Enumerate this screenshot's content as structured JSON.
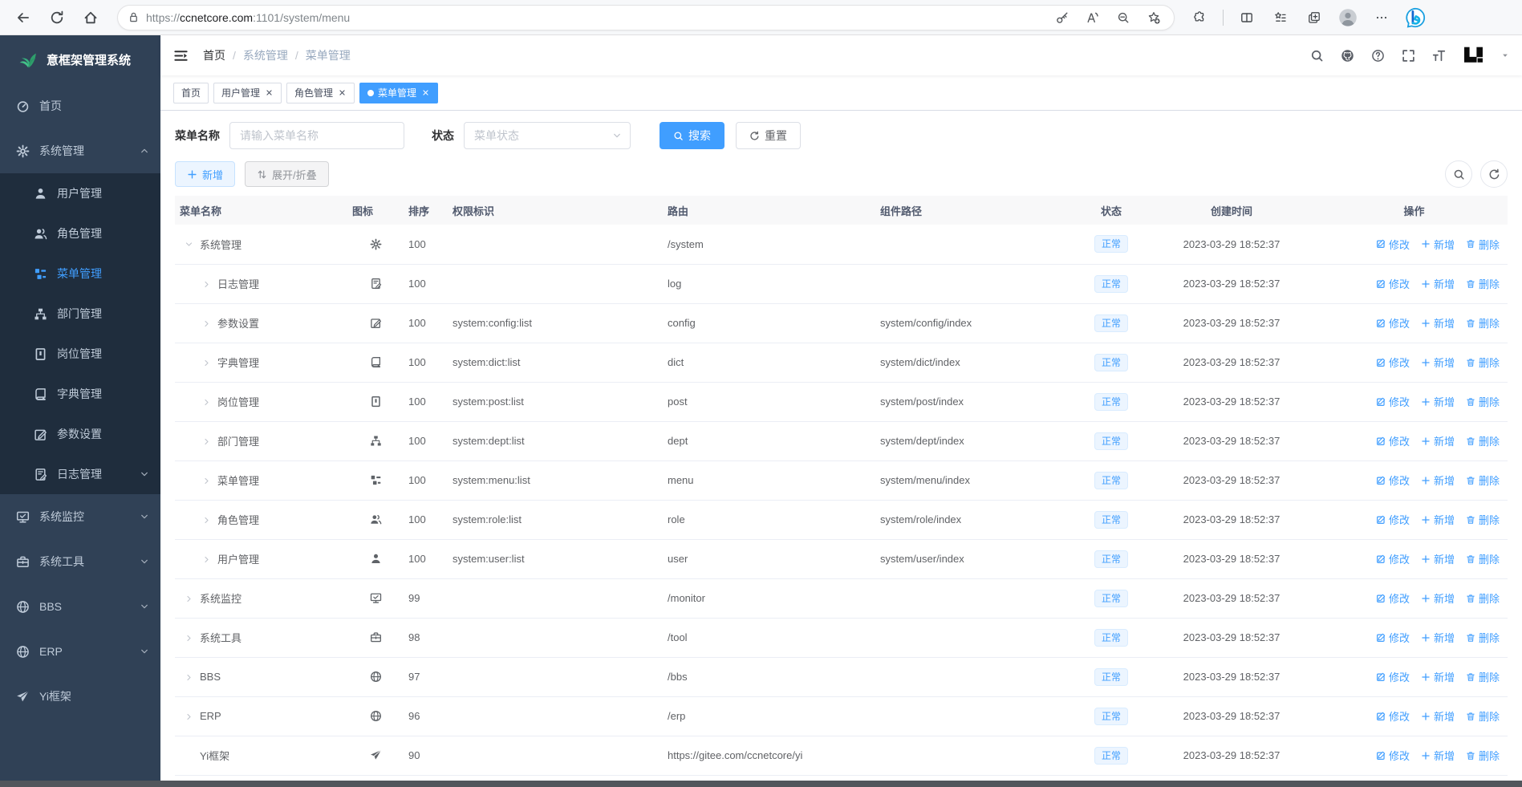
{
  "colors": {
    "primary": "#409eff",
    "sidebar_bg": "#304156",
    "sidebar_sub_bg": "#1f2d3d",
    "status_badge_bg": "#ecf5ff",
    "active_tab_bg": "#409eff",
    "leaf_logo_green": "#36b37e"
  },
  "browser": {
    "url": {
      "scheme": "https://",
      "host": "ccnetcore.com",
      "path": ":1101/system/menu"
    },
    "left_icon_names": [
      "back-icon",
      "refresh-icon",
      "home-icon"
    ],
    "pill_icon_names": [
      "lock-icon",
      "key-icon",
      "read-aloud-icon",
      "zoom-out-icon",
      "favorite-add-icon"
    ],
    "right_icon_names": [
      "extensions-icon",
      "split-screen-icon",
      "collections-icon",
      "new-tab-group-icon",
      "profile-avatar",
      "more-icon",
      "bing-copilot-icon"
    ]
  },
  "app": {
    "logo_title": "意框架管理系统",
    "breadcrumb": {
      "home": "首页",
      "sep": "/",
      "section": "系统管理",
      "current": "菜单管理"
    },
    "navbar_icon_names": [
      "search-icon",
      "github-icon",
      "help-icon",
      "fullscreen-icon",
      "font-size-icon",
      "yi-logo",
      "caret-down-icon"
    ]
  },
  "sidebar_items": [
    {
      "label": "首页",
      "icon": "dashboard",
      "type": "top"
    },
    {
      "label": "系统管理",
      "icon": "gear",
      "type": "top",
      "chevron": "up"
    },
    {
      "label": "用户管理",
      "icon": "user",
      "type": "sub"
    },
    {
      "label": "角色管理",
      "icon": "users",
      "type": "sub"
    },
    {
      "label": "菜单管理",
      "icon": "menulist",
      "type": "sub",
      "active": true
    },
    {
      "label": "部门管理",
      "icon": "tree",
      "type": "sub"
    },
    {
      "label": "岗位管理",
      "icon": "badge",
      "type": "sub"
    },
    {
      "label": "字典管理",
      "icon": "book",
      "type": "sub"
    },
    {
      "label": "参数设置",
      "icon": "edit",
      "type": "sub"
    },
    {
      "label": "日志管理",
      "icon": "lognote",
      "type": "sub",
      "chevron": "down"
    },
    {
      "label": "系统监控",
      "icon": "monitor",
      "type": "top",
      "chevron": "down"
    },
    {
      "label": "系统工具",
      "icon": "toolbox",
      "type": "top",
      "chevron": "down"
    },
    {
      "label": "BBS",
      "icon": "globe",
      "type": "top",
      "chevron": "down"
    },
    {
      "label": "ERP",
      "icon": "globe",
      "type": "top",
      "chevron": "down"
    },
    {
      "label": "Yi框架",
      "icon": "plane",
      "type": "top"
    }
  ],
  "tabs": [
    {
      "label": "首页",
      "closable": false,
      "active": false
    },
    {
      "label": "用户管理",
      "closable": true,
      "active": false
    },
    {
      "label": "角色管理",
      "closable": true,
      "active": false
    },
    {
      "label": "菜单管理",
      "closable": true,
      "active": true
    }
  ],
  "filters": {
    "name_label": "菜单名称",
    "name_placeholder": "请输入菜单名称",
    "status_label": "状态",
    "status_placeholder": "菜单状态",
    "search_label": "搜索",
    "reset_label": "重置"
  },
  "toolbar": {
    "add_label": "新增",
    "expand_label": "展开/折叠"
  },
  "table": {
    "columns": [
      "菜单名称",
      "图标",
      "排序",
      "权限标识",
      "路由",
      "组件路径",
      "状态",
      "创建时间",
      "操作"
    ],
    "status_normal": "正常",
    "op_edit": "修改",
    "op_add": "新增",
    "op_delete": "删除",
    "rows": [
      {
        "name": "系统管理",
        "icon": "gear",
        "arrow": "down",
        "level": 0,
        "sort": "100",
        "perm": "",
        "route": "/system",
        "component": "",
        "status": "正常",
        "time": "2023-03-29 18:52:37"
      },
      {
        "name": "日志管理",
        "icon": "lognote",
        "arrow": "right",
        "level": 1,
        "sort": "100",
        "perm": "",
        "route": "log",
        "component": "",
        "status": "正常",
        "time": "2023-03-29 18:52:37"
      },
      {
        "name": "参数设置",
        "icon": "edit",
        "arrow": "right",
        "level": 1,
        "sort": "100",
        "perm": "system:config:list",
        "route": "config",
        "component": "system/config/index",
        "status": "正常",
        "time": "2023-03-29 18:52:37"
      },
      {
        "name": "字典管理",
        "icon": "book",
        "arrow": "right",
        "level": 1,
        "sort": "100",
        "perm": "system:dict:list",
        "route": "dict",
        "component": "system/dict/index",
        "status": "正常",
        "time": "2023-03-29 18:52:37"
      },
      {
        "name": "岗位管理",
        "icon": "badge",
        "arrow": "right",
        "level": 1,
        "sort": "100",
        "perm": "system:post:list",
        "route": "post",
        "component": "system/post/index",
        "status": "正常",
        "time": "2023-03-29 18:52:37"
      },
      {
        "name": "部门管理",
        "icon": "tree",
        "arrow": "right",
        "level": 1,
        "sort": "100",
        "perm": "system:dept:list",
        "route": "dept",
        "component": "system/dept/index",
        "status": "正常",
        "time": "2023-03-29 18:52:37"
      },
      {
        "name": "菜单管理",
        "icon": "menulist",
        "arrow": "right",
        "level": 1,
        "sort": "100",
        "perm": "system:menu:list",
        "route": "menu",
        "component": "system/menu/index",
        "status": "正常",
        "time": "2023-03-29 18:52:37"
      },
      {
        "name": "角色管理",
        "icon": "users",
        "arrow": "right",
        "level": 1,
        "sort": "100",
        "perm": "system:role:list",
        "route": "role",
        "component": "system/role/index",
        "status": "正常",
        "time": "2023-03-29 18:52:37"
      },
      {
        "name": "用户管理",
        "icon": "user",
        "arrow": "right",
        "level": 1,
        "sort": "100",
        "perm": "system:user:list",
        "route": "user",
        "component": "system/user/index",
        "status": "正常",
        "time": "2023-03-29 18:52:37"
      },
      {
        "name": "系统监控",
        "icon": "monitor",
        "arrow": "right",
        "level": 0,
        "sort": "99",
        "perm": "",
        "route": "/monitor",
        "component": "",
        "status": "正常",
        "time": "2023-03-29 18:52:37"
      },
      {
        "name": "系统工具",
        "icon": "toolbox",
        "arrow": "right",
        "level": 0,
        "sort": "98",
        "perm": "",
        "route": "/tool",
        "component": "",
        "status": "正常",
        "time": "2023-03-29 18:52:37"
      },
      {
        "name": "BBS",
        "icon": "globe",
        "arrow": "right",
        "level": 0,
        "sort": "97",
        "perm": "",
        "route": "/bbs",
        "component": "",
        "status": "正常",
        "time": "2023-03-29 18:52:37"
      },
      {
        "name": "ERP",
        "icon": "globe",
        "arrow": "right",
        "level": 0,
        "sort": "96",
        "perm": "",
        "route": "/erp",
        "component": "",
        "status": "正常",
        "time": "2023-03-29 18:52:37"
      },
      {
        "name": "Yi框架",
        "icon": "plane",
        "arrow": "none",
        "level": 0,
        "sort": "90",
        "perm": "",
        "route": "https://gitee.com/ccnetcore/yi",
        "component": "",
        "status": "正常",
        "time": "2023-03-29 18:52:37"
      }
    ]
  }
}
